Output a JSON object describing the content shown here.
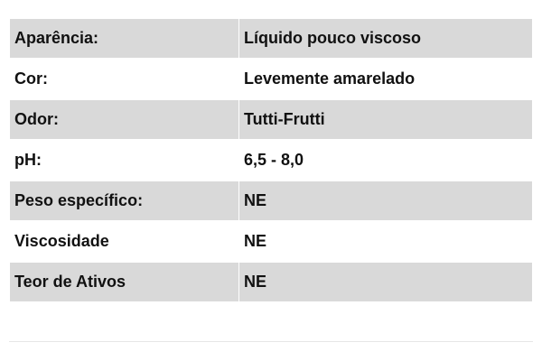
{
  "table": {
    "rows": [
      {
        "label": "Aparência:",
        "value": "Líquido pouco viscoso"
      },
      {
        "label": "Cor:",
        "value": "Levemente amarelado"
      },
      {
        "label": "Odor:",
        "value": "Tutti-Frutti"
      },
      {
        "label": "pH:",
        "value": "6,5 - 8,0"
      },
      {
        "label": "Peso específico:",
        "value": "NE"
      },
      {
        "label": "Viscosidade",
        "value": "NE"
      },
      {
        "label": "Teor de Ativos",
        "value": "NE"
      }
    ]
  },
  "colors": {
    "shade": "#d9d9d9",
    "divider": "#e6e6e6"
  }
}
